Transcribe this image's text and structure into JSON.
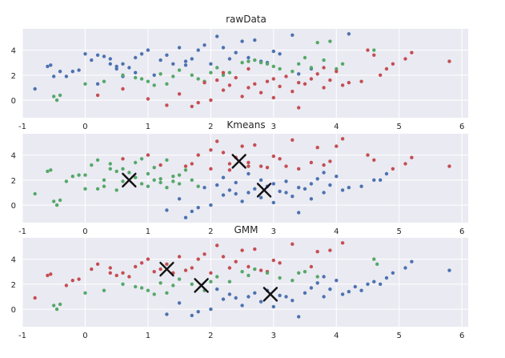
{
  "chart_data": [
    {
      "type": "scatter",
      "title": "rawData",
      "xlim": [
        -1,
        6.1
      ],
      "ylim": [
        -1.4,
        5.7
      ],
      "xticks": [
        -1,
        0,
        1,
        2,
        3,
        4,
        5,
        6
      ],
      "yticks": [
        0,
        2,
        4
      ],
      "grid": true,
      "series": [
        {
          "color": "#4c72b0",
          "x": [
            -0.8,
            -0.6,
            -0.55,
            -0.5,
            -0.4,
            -0.2,
            -0.1,
            0.0,
            0.1,
            0.2,
            0.3,
            0.4,
            0.5,
            0.6,
            0.7,
            0.8,
            1.0,
            1.2,
            1.4,
            1.6,
            1.7,
            1.8,
            2.0,
            2.2,
            2.4,
            2.6,
            2.8,
            3.0,
            3.1,
            3.3,
            0.2,
            0.5,
            0.9,
            1.3,
            1.5,
            1.9,
            2.1,
            2.5,
            2.7,
            3.4,
            4.2,
            0.4,
            0.8,
            1.1,
            -0.3,
            0.6,
            1.6,
            2.3,
            2.9,
            3.6
          ],
          "y": [
            0.9,
            2.7,
            2.8,
            1.9,
            2.3,
            2.3,
            2.4,
            3.7,
            3.2,
            3.6,
            3.5,
            3.3,
            2.7,
            2.9,
            2.6,
            2.2,
            4.0,
            3.2,
            2.9,
            3.1,
            3.3,
            4.0,
            2.9,
            4.2,
            3.8,
            3.4,
            3.1,
            3.9,
            3.7,
            5.2,
            1.3,
            2.5,
            3.7,
            3.6,
            4.2,
            4.4,
            5.1,
            4.7,
            4.8,
            2.1,
            5.3,
            2.9,
            3.4,
            2.0,
            1.9,
            1.9,
            2.8,
            3.3,
            3.0,
            2.5
          ]
        },
        {
          "color": "#55a868",
          "x": [
            -0.5,
            -0.45,
            -0.4,
            0.0,
            0.3,
            0.6,
            0.8,
            1.0,
            1.2,
            1.4,
            1.5,
            1.7,
            1.9,
            2.1,
            2.3,
            2.5,
            2.7,
            2.9,
            3.1,
            3.3,
            3.5,
            3.7,
            3.9,
            4.1,
            4.6,
            0.9,
            1.3,
            1.8,
            2.2,
            2.6,
            3.0,
            3.4,
            3.8,
            1.1,
            2.0,
            2.8,
            3.6,
            4.0
          ],
          "y": [
            0.3,
            0.0,
            0.4,
            1.3,
            1.5,
            2.0,
            1.8,
            1.5,
            2.1,
            1.9,
            2.4,
            2.0,
            1.5,
            2.6,
            2.2,
            3.0,
            3.2,
            2.9,
            2.5,
            2.3,
            3.4,
            4.6,
            4.7,
            2.9,
            4.0,
            1.7,
            1.3,
            1.7,
            2.0,
            3.1,
            2.7,
            2.9,
            3.2,
            1.2,
            2.2,
            3.0,
            2.6,
            2.5
          ]
        },
        {
          "color": "#c44e52",
          "x": [
            0.2,
            0.6,
            1.0,
            1.3,
            1.5,
            1.7,
            1.9,
            2.0,
            2.1,
            2.2,
            2.3,
            2.4,
            2.5,
            2.6,
            2.7,
            2.8,
            2.9,
            3.0,
            3.1,
            3.2,
            3.3,
            3.4,
            3.5,
            3.6,
            3.7,
            3.8,
            3.9,
            4.0,
            4.2,
            4.4,
            4.5,
            4.6,
            4.7,
            4.8,
            4.9,
            5.1,
            5.2,
            5.8,
            1.8,
            2.2,
            2.6,
            3.0,
            3.4,
            3.8,
            4.1
          ],
          "y": [
            0.4,
            0.9,
            0.1,
            -0.4,
            0.5,
            -0.5,
            1.4,
            0.0,
            1.6,
            0.8,
            1.2,
            1.8,
            0.3,
            1.0,
            1.3,
            0.6,
            1.5,
            0.2,
            1.1,
            1.9,
            0.7,
            1.4,
            1.3,
            1.7,
            2.1,
            1.0,
            1.6,
            2.3,
            1.4,
            1.5,
            4.0,
            3.6,
            2.0,
            2.5,
            2.9,
            3.3,
            3.8,
            3.1,
            -0.2,
            2.2,
            2.5,
            1.7,
            -0.6,
            2.6,
            1.2
          ]
        }
      ]
    },
    {
      "type": "scatter",
      "title": "Kmeans",
      "xlim": [
        -1,
        6.1
      ],
      "ylim": [
        -1.4,
        5.7
      ],
      "xticks": [
        -1,
        0,
        1,
        2,
        3,
        4,
        5,
        6
      ],
      "yticks": [
        0,
        2,
        4
      ],
      "grid": true,
      "centers": [
        {
          "x": 0.7,
          "y": 2.0
        },
        {
          "x": 2.45,
          "y": 3.5
        },
        {
          "x": 2.85,
          "y": 1.2
        }
      ],
      "series": [
        {
          "color": "#55a868",
          "x": [
            -0.8,
            -0.6,
            -0.55,
            -0.5,
            -0.45,
            -0.4,
            -0.3,
            -0.2,
            -0.1,
            0.0,
            0.1,
            0.2,
            0.3,
            0.4,
            0.5,
            0.6,
            0.7,
            0.8,
            0.9,
            1.0,
            1.1,
            1.2,
            1.3,
            1.4,
            1.5,
            1.6,
            1.7,
            0.2,
            0.4,
            0.6,
            0.8,
            1.0,
            1.2,
            1.4,
            0.0,
            0.3,
            0.5,
            0.9,
            1.1,
            1.3,
            1.5,
            1.8
          ],
          "y": [
            0.9,
            2.7,
            2.8,
            0.3,
            0.0,
            0.4,
            1.9,
            2.3,
            2.4,
            1.3,
            3.2,
            3.6,
            1.5,
            3.3,
            2.7,
            2.9,
            2.6,
            2.2,
            3.7,
            1.5,
            2.0,
            2.1,
            3.6,
            1.9,
            2.4,
            2.8,
            2.0,
            1.3,
            2.9,
            1.9,
            3.4,
            2.5,
            1.8,
            2.3,
            2.4,
            2.0,
            1.2,
            1.7,
            3.0,
            1.4,
            1.7,
            1.5
          ]
        },
        {
          "color": "#c44e52",
          "x": [
            0.6,
            1.0,
            1.2,
            1.6,
            1.8,
            2.0,
            2.1,
            2.2,
            2.3,
            2.4,
            2.5,
            2.6,
            2.7,
            2.8,
            2.9,
            3.0,
            3.1,
            3.2,
            3.3,
            3.4,
            3.6,
            3.8,
            4.0,
            4.1,
            4.5,
            4.9,
            5.1,
            5.2,
            5.8,
            1.7,
            2.0,
            2.3,
            2.6,
            3.7,
            3.9,
            4.6
          ],
          "y": [
            3.7,
            4.0,
            3.2,
            3.1,
            4.0,
            2.9,
            5.1,
            4.2,
            3.3,
            3.8,
            4.7,
            3.4,
            4.8,
            3.1,
            3.0,
            3.9,
            3.7,
            3.1,
            5.2,
            2.9,
            3.4,
            3.2,
            4.7,
            5.3,
            4.0,
            2.9,
            3.3,
            3.8,
            3.1,
            3.3,
            4.4,
            2.8,
            3.1,
            4.6,
            3.5,
            3.6
          ]
        },
        {
          "color": "#4c72b0",
          "x": [
            1.3,
            1.5,
            1.7,
            1.9,
            2.0,
            2.1,
            2.2,
            2.3,
            2.4,
            2.5,
            2.6,
            2.7,
            2.8,
            2.9,
            3.0,
            3.1,
            3.2,
            3.3,
            3.4,
            3.5,
            3.6,
            3.7,
            3.8,
            3.9,
            4.0,
            4.2,
            4.4,
            4.6,
            4.7,
            4.8,
            1.8,
            2.2,
            2.6,
            3.0,
            3.4,
            3.8,
            4.1,
            1.6,
            2.4,
            2.8,
            3.2,
            3.6
          ],
          "y": [
            -0.4,
            0.5,
            -0.5,
            1.4,
            0.0,
            1.6,
            0.8,
            1.2,
            1.8,
            0.3,
            1.0,
            1.3,
            0.6,
            1.5,
            0.2,
            1.1,
            1.9,
            0.7,
            1.4,
            1.3,
            1.7,
            2.1,
            1.0,
            1.6,
            2.3,
            1.4,
            1.5,
            2.0,
            2.0,
            2.5,
            -0.2,
            2.2,
            2.5,
            1.7,
            -0.6,
            2.6,
            1.2,
            -1.0,
            0.9,
            2.0,
            1.0,
            0.5
          ]
        }
      ]
    },
    {
      "type": "scatter",
      "title": "GMM",
      "xlim": [
        -1,
        6.1
      ],
      "ylim": [
        -1.4,
        5.7
      ],
      "xticks": [
        -1,
        0,
        1,
        2,
        3,
        4,
        5,
        6
      ],
      "yticks": [
        0,
        2,
        4
      ],
      "grid": true,
      "centers": [
        {
          "x": 1.3,
          "y": 3.2
        },
        {
          "x": 1.85,
          "y": 1.9
        },
        {
          "x": 2.95,
          "y": 1.2
        }
      ],
      "series": [
        {
          "color": "#c44e52",
          "x": [
            -0.8,
            -0.6,
            -0.55,
            -0.3,
            -0.2,
            -0.1,
            0.1,
            0.2,
            0.4,
            0.5,
            0.6,
            0.7,
            0.9,
            1.0,
            1.1,
            1.2,
            1.3,
            1.4,
            1.5,
            1.6,
            1.7,
            1.8,
            2.0,
            2.1,
            2.2,
            2.3,
            2.4,
            2.5,
            2.6,
            2.7,
            2.8,
            3.0,
            3.1,
            3.3,
            3.6,
            3.7,
            3.9,
            4.1,
            0.4,
            0.8,
            1.9,
            2.9
          ],
          "y": [
            0.9,
            2.7,
            2.8,
            1.9,
            2.3,
            2.4,
            3.2,
            3.6,
            3.3,
            2.7,
            2.9,
            2.6,
            3.7,
            4.0,
            3.0,
            3.2,
            3.6,
            2.9,
            4.2,
            3.1,
            3.3,
            4.0,
            2.9,
            5.1,
            4.2,
            3.3,
            3.8,
            4.7,
            3.4,
            4.8,
            3.1,
            3.9,
            3.7,
            5.2,
            3.4,
            4.6,
            4.7,
            5.3,
            2.9,
            3.4,
            4.4,
            3.0
          ]
        },
        {
          "color": "#55a868",
          "x": [
            -0.5,
            -0.45,
            -0.4,
            0.0,
            0.3,
            0.6,
            0.8,
            0.9,
            1.0,
            1.2,
            1.3,
            1.4,
            1.5,
            1.7,
            1.9,
            2.1,
            2.3,
            2.5,
            2.7,
            2.9,
            3.1,
            3.3,
            3.5,
            3.7,
            4.6,
            4.65,
            1.1,
            2.0,
            2.6,
            3.4
          ],
          "y": [
            0.3,
            0.0,
            0.4,
            1.3,
            1.5,
            2.0,
            1.8,
            1.7,
            1.5,
            2.1,
            1.3,
            1.9,
            2.4,
            2.0,
            1.5,
            2.6,
            2.2,
            3.0,
            3.2,
            2.9,
            2.5,
            2.3,
            3.0,
            2.6,
            4.0,
            3.6,
            1.2,
            2.2,
            2.7,
            2.9
          ]
        },
        {
          "color": "#4c72b0",
          "x": [
            1.3,
            1.5,
            1.7,
            1.8,
            2.0,
            2.2,
            2.4,
            2.5,
            2.6,
            2.8,
            3.0,
            3.2,
            3.4,
            3.5,
            3.6,
            3.7,
            3.8,
            3.9,
            4.0,
            4.1,
            4.2,
            4.4,
            4.5,
            4.7,
            4.8,
            4.9,
            5.1,
            5.2,
            5.8,
            2.1,
            2.3,
            2.7,
            2.9,
            3.1,
            3.3,
            3.8,
            4.3,
            4.6
          ],
          "y": [
            -0.4,
            0.5,
            -0.5,
            -0.2,
            0.0,
            0.8,
            0.9,
            0.3,
            1.0,
            0.6,
            0.2,
            1.0,
            -0.6,
            1.3,
            1.7,
            2.1,
            1.0,
            1.6,
            2.3,
            1.2,
            1.4,
            1.5,
            2.0,
            2.0,
            2.5,
            2.9,
            3.3,
            3.8,
            3.1,
            1.6,
            1.2,
            1.3,
            1.5,
            1.1,
            0.7,
            2.6,
            1.8,
            2.2
          ]
        }
      ]
    }
  ]
}
